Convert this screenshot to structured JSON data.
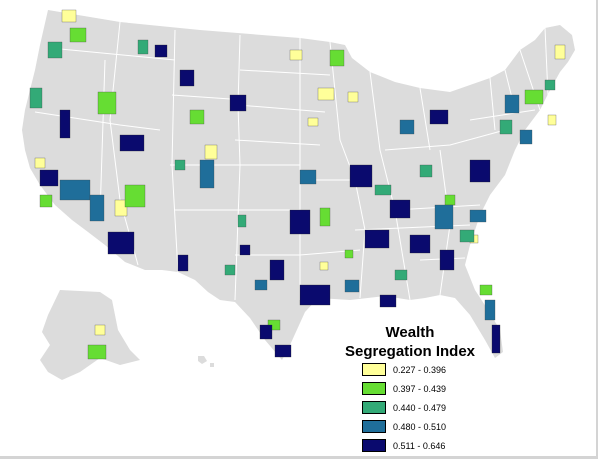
{
  "legend": {
    "title_line1": "Wealth",
    "title_line2": "Segregation Index",
    "items": [
      {
        "label": "0.227 - 0.396",
        "color": "#ffff99"
      },
      {
        "label": "0.397 - 0.439",
        "color": "#66dd33"
      },
      {
        "label": "0.440 - 0.479",
        "color": "#33aa77"
      },
      {
        "label": "0.480 - 0.510",
        "color": "#1f6e9a"
      },
      {
        "label": "0.511 - 0.646",
        "color": "#0a0a6e"
      }
    ]
  },
  "colors": {
    "land": "#dcdcdc",
    "state_border": "#ffffff",
    "background": "#ffffff"
  }
}
